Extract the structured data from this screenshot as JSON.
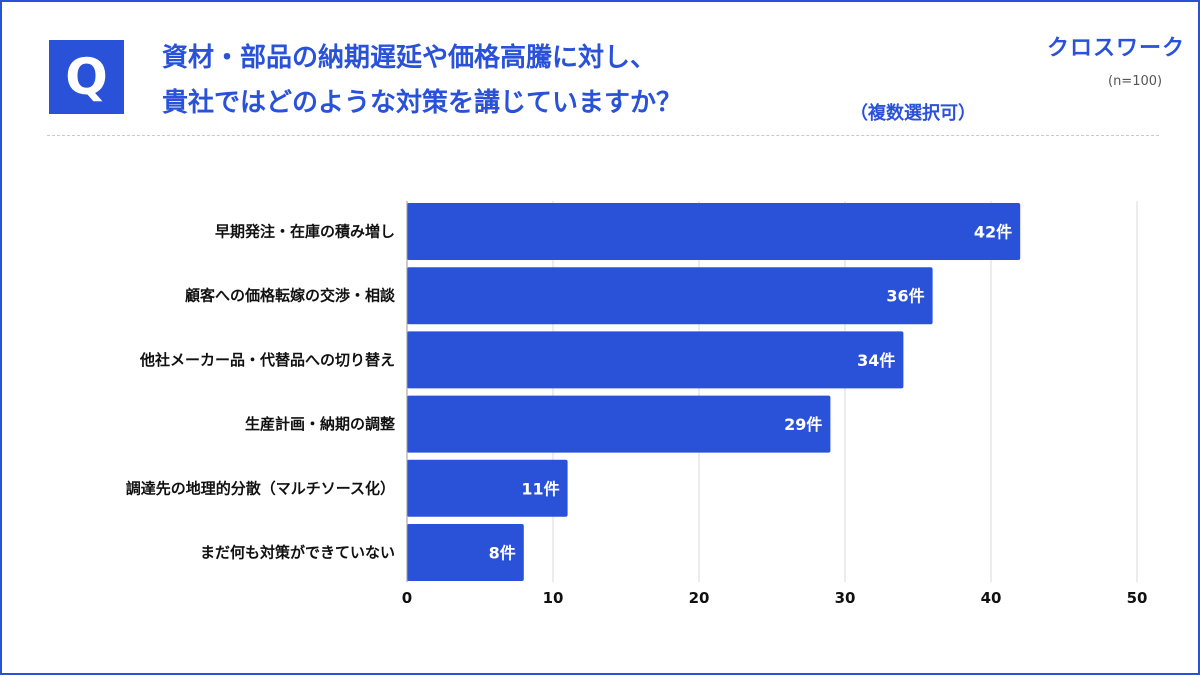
{
  "header": {
    "badge": "Q",
    "title_line1": "資材・部品の納期遅延や価格高騰に対し、",
    "title_line2": "貴社ではどのような対策を講じていますか？",
    "note": "（複数選択可）",
    "logo": "クロスワーク",
    "sample": "(n=100)"
  },
  "colors": {
    "accent": "#2a52d8",
    "bar": "#2a52d8",
    "grid": "#d9d9d9"
  },
  "chart_data": {
    "type": "bar",
    "orientation": "horizontal",
    "categories": [
      "早期発注・在庫の積み増し",
      "顧客への価格転嫁の交渉・相談",
      "他社メーカー品・代替品への切り替え",
      "生産計画・納期の調整",
      "調達先の地理的分散（マルチソース化）",
      "まだ何も対策ができていない"
    ],
    "values": [
      42,
      36,
      34,
      29,
      11,
      8
    ],
    "value_labels": [
      "42件",
      "36件",
      "34件",
      "29件",
      "11件",
      "8件"
    ],
    "xlim": [
      0,
      50
    ],
    "x_ticks": [
      0,
      10,
      20,
      30,
      40,
      50
    ],
    "grid": true
  }
}
